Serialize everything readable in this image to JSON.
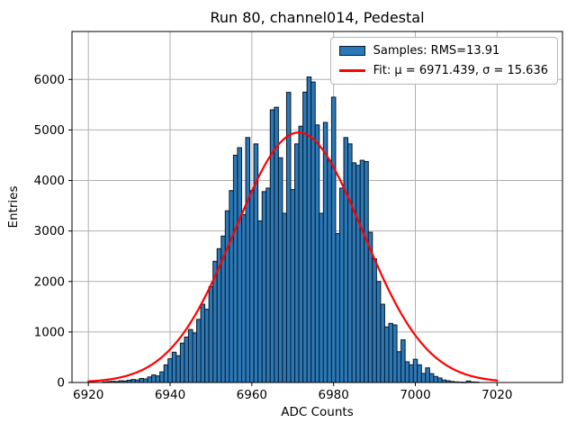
{
  "title": "Run 80, channel014, Pedestal",
  "legend": {
    "samples_label": "Samples: RMS=13.91",
    "fit_label": "Fit: μ = 6971.439, σ = 15.636"
  },
  "colors": {
    "bar_fill": "#2979b9",
    "bar_edge": "#0c1826",
    "fit_line": "#ff0000",
    "grid": "#b0b0b0",
    "spine": "#000000",
    "legend_border": "#b7b7b7"
  },
  "chart_data": {
    "type": "bar",
    "subtype": "histogram",
    "title": "Run 80, channel014, Pedestal",
    "xlabel": "ADC Counts",
    "ylabel": "Entries",
    "xlim": [
      6916,
      7036
    ],
    "ylim": [
      0,
      6950
    ],
    "xticks": [
      6920,
      6940,
      6960,
      6980,
      7000,
      7020
    ],
    "yticks": [
      0,
      1000,
      2000,
      3000,
      4000,
      5000,
      6000
    ],
    "grid": true,
    "legend_position": "upper right",
    "bin_start": 6924,
    "bin_width": 1,
    "values": [
      12,
      18,
      25,
      20,
      35,
      30,
      45,
      60,
      50,
      80,
      70,
      110,
      150,
      130,
      210,
      350,
      470,
      600,
      530,
      780,
      900,
      1050,
      980,
      1250,
      1550,
      1450,
      1900,
      2400,
      2650,
      2900,
      3400,
      3800,
      4500,
      4650,
      3325,
      4850,
      3800,
      4725,
      3200,
      3780,
      3850,
      5400,
      5450,
      4450,
      3350,
      5745,
      3820,
      4725,
      5075,
      5750,
      6050,
      5950,
      5100,
      3350,
      5150,
      4400,
      5650,
      2950,
      3850,
      4850,
      4725,
      4350,
      4300,
      4400,
      4375,
      2975,
      2450,
      2000,
      1550,
      1100,
      1170,
      1140,
      610,
      845,
      410,
      350,
      460,
      350,
      180,
      290,
      175,
      120,
      90,
      50,
      35,
      20,
      12,
      8,
      5,
      30,
      12,
      8
    ],
    "series": [
      {
        "name": "Samples: RMS=13.91",
        "rms": 13.91
      },
      {
        "name": "Fit: μ = 6971.439, σ = 15.636",
        "fit": {
          "mu": 6971.439,
          "sigma": 15.636,
          "amplitude": 4950,
          "range": [
            6920,
            7020
          ]
        }
      }
    ]
  }
}
